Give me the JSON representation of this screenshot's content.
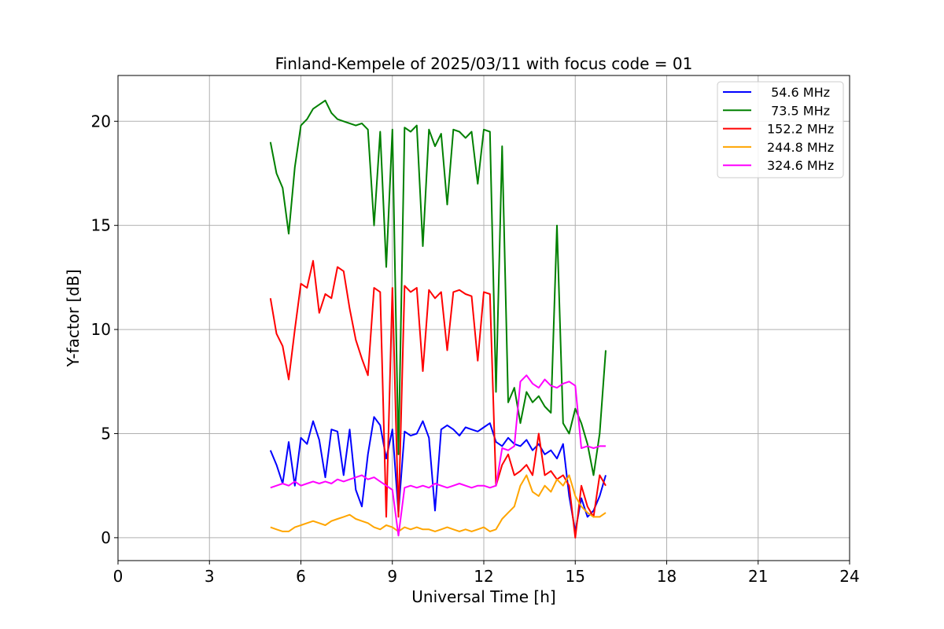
{
  "chart_data": {
    "type": "line",
    "title": "Finland-Kempele of 2025/03/11 with focus code = 01",
    "xlabel": "Universal Time [h]",
    "ylabel": "Y-factor [dB]",
    "xlim": [
      0,
      24
    ],
    "ylim": [
      -1.1,
      22.2
    ],
    "xticks": [
      0,
      3,
      6,
      9,
      12,
      15,
      18,
      21,
      24
    ],
    "yticks": [
      0,
      5,
      10,
      15,
      20
    ],
    "grid": true,
    "legend_position": "top-right",
    "series": [
      {
        "name": " 54.6 MHz",
        "color": "#0000ff",
        "x": [
          5.0,
          5.2,
          5.4,
          5.6,
          5.8,
          6.0,
          6.2,
          6.4,
          6.6,
          6.8,
          7.0,
          7.2,
          7.4,
          7.6,
          7.8,
          8.0,
          8.2,
          8.4,
          8.6,
          8.8,
          9.0,
          9.2,
          9.4,
          9.6,
          9.8,
          10.0,
          10.2,
          10.4,
          10.6,
          10.8,
          11.0,
          11.2,
          11.4,
          11.6,
          11.8,
          12.0,
          12.2,
          12.4,
          12.6,
          12.8,
          13.0,
          13.2,
          13.4,
          13.6,
          13.8,
          14.0,
          14.2,
          14.4,
          14.6,
          14.8,
          15.0,
          15.2,
          15.4,
          15.6,
          15.8,
          16.0
        ],
        "y": [
          4.2,
          3.5,
          2.6,
          4.6,
          2.5,
          4.8,
          4.5,
          5.6,
          4.7,
          2.9,
          5.2,
          5.1,
          3.0,
          5.2,
          2.3,
          1.5,
          4.0,
          5.8,
          5.4,
          3.8,
          5.2,
          1.2,
          5.1,
          4.9,
          5.0,
          5.6,
          4.8,
          1.3,
          5.2,
          5.4,
          5.2,
          4.9,
          5.3,
          5.2,
          5.1,
          5.3,
          5.5,
          4.6,
          4.4,
          4.8,
          4.5,
          4.4,
          4.7,
          4.2,
          4.5,
          4.0,
          4.2,
          3.8,
          4.5,
          2.0,
          0.3,
          1.9,
          1.0,
          1.3,
          2.0,
          3.0
        ]
      },
      {
        "name": " 73.5 MHz",
        "color": "#008000",
        "x": [
          5.0,
          5.2,
          5.4,
          5.6,
          5.8,
          6.0,
          6.2,
          6.4,
          6.6,
          6.8,
          7.0,
          7.2,
          7.4,
          7.6,
          7.8,
          8.0,
          8.2,
          8.4,
          8.6,
          8.8,
          9.0,
          9.2,
          9.4,
          9.6,
          9.8,
          10.0,
          10.2,
          10.4,
          10.6,
          10.8,
          11.0,
          11.2,
          11.4,
          11.6,
          11.8,
          12.0,
          12.2,
          12.4,
          12.6,
          12.8,
          13.0,
          13.2,
          13.4,
          13.6,
          13.8,
          14.0,
          14.2,
          14.4,
          14.6,
          14.8,
          15.0,
          15.2,
          15.4,
          15.6,
          15.8,
          16.0
        ],
        "y": [
          19.0,
          17.5,
          16.8,
          14.6,
          17.8,
          19.8,
          20.1,
          20.6,
          20.8,
          21.0,
          20.4,
          20.1,
          20.0,
          19.9,
          19.8,
          19.9,
          19.6,
          15.0,
          19.5,
          13.0,
          19.6,
          4.0,
          19.7,
          19.5,
          19.8,
          14.0,
          19.6,
          18.8,
          19.4,
          16.0,
          19.6,
          19.5,
          19.2,
          19.5,
          17.0,
          19.6,
          19.5,
          7.0,
          18.8,
          6.5,
          7.2,
          5.5,
          7.0,
          6.5,
          6.8,
          6.3,
          6.0,
          15.0,
          5.5,
          5.0,
          6.2,
          5.5,
          4.5,
          3.0,
          5.0,
          9.0
        ]
      },
      {
        "name": " 152.2 MHz",
        "color": "#ff0000",
        "x": [
          5.0,
          5.2,
          5.4,
          5.6,
          5.8,
          6.0,
          6.2,
          6.4,
          6.6,
          6.8,
          7.0,
          7.2,
          7.4,
          7.6,
          7.8,
          8.0,
          8.2,
          8.4,
          8.6,
          8.8,
          9.0,
          9.2,
          9.4,
          9.6,
          9.8,
          10.0,
          10.2,
          10.4,
          10.6,
          10.8,
          11.0,
          11.2,
          11.4,
          11.6,
          11.8,
          12.0,
          12.2,
          12.4,
          12.6,
          12.8,
          13.0,
          13.2,
          13.4,
          13.6,
          13.8,
          14.0,
          14.2,
          14.4,
          14.6,
          14.8,
          15.0,
          15.2,
          15.4,
          15.6,
          15.8,
          16.0
        ],
        "y": [
          11.5,
          9.8,
          9.2,
          7.6,
          10.0,
          12.2,
          12.0,
          13.3,
          10.8,
          11.7,
          11.5,
          13.0,
          12.8,
          11.0,
          9.5,
          8.6,
          7.8,
          12.0,
          11.8,
          1.0,
          12.0,
          1.0,
          12.1,
          11.8,
          12.0,
          8.0,
          11.9,
          11.5,
          11.8,
          9.0,
          11.8,
          11.9,
          11.7,
          11.6,
          8.5,
          11.8,
          11.7,
          2.5,
          3.5,
          4.0,
          3.0,
          3.2,
          3.5,
          3.0,
          5.0,
          3.0,
          3.2,
          2.8,
          3.0,
          2.5,
          0.0,
          2.5,
          1.5,
          1.0,
          3.0,
          2.5
        ]
      },
      {
        "name": " 244.8 MHz",
        "color": "#ffa500",
        "x": [
          5.0,
          5.2,
          5.4,
          5.6,
          5.8,
          6.0,
          6.2,
          6.4,
          6.6,
          6.8,
          7.0,
          7.2,
          7.4,
          7.6,
          7.8,
          8.0,
          8.2,
          8.4,
          8.6,
          8.8,
          9.0,
          9.2,
          9.4,
          9.6,
          9.8,
          10.0,
          10.2,
          10.4,
          10.6,
          10.8,
          11.0,
          11.2,
          11.4,
          11.6,
          11.8,
          12.0,
          12.2,
          12.4,
          12.6,
          12.8,
          13.0,
          13.2,
          13.4,
          13.6,
          13.8,
          14.0,
          14.2,
          14.4,
          14.6,
          14.8,
          15.0,
          15.2,
          15.4,
          15.6,
          15.8,
          16.0
        ],
        "y": [
          0.5,
          0.4,
          0.3,
          0.3,
          0.5,
          0.6,
          0.7,
          0.8,
          0.7,
          0.6,
          0.8,
          0.9,
          1.0,
          1.1,
          0.9,
          0.8,
          0.7,
          0.5,
          0.4,
          0.6,
          0.5,
          0.3,
          0.5,
          0.4,
          0.5,
          0.4,
          0.4,
          0.3,
          0.4,
          0.5,
          0.4,
          0.3,
          0.4,
          0.3,
          0.4,
          0.5,
          0.3,
          0.4,
          0.9,
          1.2,
          1.5,
          2.5,
          3.0,
          2.2,
          2.0,
          2.5,
          2.2,
          2.8,
          2.5,
          3.0,
          2.0,
          1.5,
          1.2,
          1.0,
          1.0,
          1.2
        ]
      },
      {
        "name": " 324.6 MHz",
        "color": "#ff00ff",
        "x": [
          5.0,
          5.2,
          5.4,
          5.6,
          5.8,
          6.0,
          6.2,
          6.4,
          6.6,
          6.8,
          7.0,
          7.2,
          7.4,
          7.6,
          7.8,
          8.0,
          8.2,
          8.4,
          8.6,
          8.8,
          9.0,
          9.2,
          9.4,
          9.6,
          9.8,
          10.0,
          10.2,
          10.4,
          10.6,
          10.8,
          11.0,
          11.2,
          11.4,
          11.6,
          11.8,
          12.0,
          12.2,
          12.4,
          12.6,
          12.8,
          13.0,
          13.2,
          13.4,
          13.6,
          13.8,
          14.0,
          14.2,
          14.4,
          14.6,
          14.8,
          15.0,
          15.2,
          15.4,
          15.6,
          15.8,
          16.0
        ],
        "y": [
          2.4,
          2.5,
          2.6,
          2.5,
          2.7,
          2.5,
          2.6,
          2.7,
          2.6,
          2.7,
          2.6,
          2.8,
          2.7,
          2.8,
          2.9,
          3.0,
          2.8,
          2.9,
          2.7,
          2.5,
          2.3,
          0.1,
          2.4,
          2.5,
          2.4,
          2.5,
          2.4,
          2.6,
          2.5,
          2.4,
          2.5,
          2.6,
          2.5,
          2.4,
          2.5,
          2.5,
          2.4,
          2.5,
          4.3,
          4.2,
          4.4,
          7.5,
          7.8,
          7.4,
          7.2,
          7.6,
          7.3,
          7.2,
          7.4,
          7.5,
          7.3,
          4.3,
          4.4,
          4.3,
          4.4,
          4.4
        ]
      }
    ]
  }
}
